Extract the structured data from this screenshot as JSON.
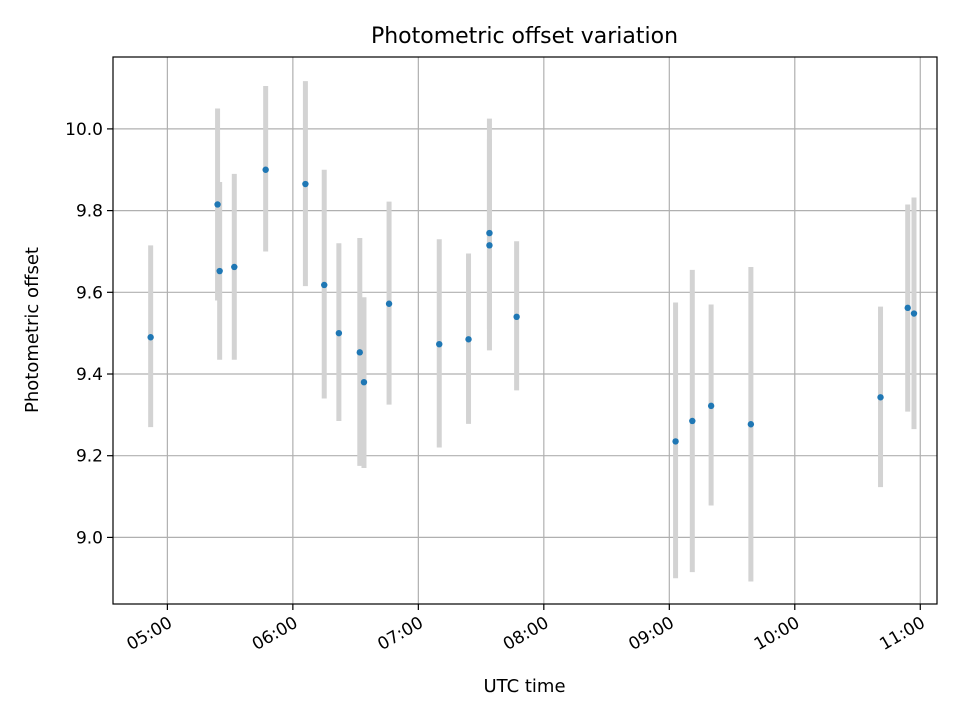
{
  "chart_data": {
    "type": "scatter",
    "title": "Photometric offset variation",
    "xlabel": "UTC time",
    "ylabel": "Photometric offset",
    "x_tick_labels": [
      "05:00",
      "06:00",
      "07:00",
      "08:00",
      "09:00",
      "10:00",
      "11:00"
    ],
    "x_tick_minutes": [
      300,
      360,
      420,
      480,
      540,
      600,
      660
    ],
    "y_tick_labels": [
      "9.0",
      "9.2",
      "9.4",
      "9.6",
      "9.8",
      "10.0"
    ],
    "y_tick_values": [
      9.0,
      9.2,
      9.4,
      9.6,
      9.8,
      10.0
    ],
    "xlim": [
      "04:34",
      "11:08"
    ],
    "ylim": [
      8.837,
      10.176
    ],
    "grid": true,
    "colors": {
      "marker": "#1f77b4",
      "errorbar": "#d3d3d3",
      "grid": "#b0b0b0"
    },
    "points": [
      {
        "time": "04:52",
        "value": 9.49,
        "err_low": 9.27,
        "err_high": 9.715
      },
      {
        "time": "05:24",
        "value": 9.815,
        "err_low": 9.58,
        "err_high": 10.05
      },
      {
        "time": "05:25",
        "value": 9.652,
        "err_low": 9.435,
        "err_high": 9.87
      },
      {
        "time": "05:32",
        "value": 9.662,
        "err_low": 9.435,
        "err_high": 9.89
      },
      {
        "time": "05:47",
        "value": 9.9,
        "err_low": 9.7,
        "err_high": 10.105
      },
      {
        "time": "06:06",
        "value": 9.865,
        "err_low": 9.615,
        "err_high": 10.117
      },
      {
        "time": "06:15",
        "value": 9.618,
        "err_low": 9.34,
        "err_high": 9.9
      },
      {
        "time": "06:22",
        "value": 9.5,
        "err_low": 9.285,
        "err_high": 9.72
      },
      {
        "time": "06:32",
        "value": 9.453,
        "err_low": 9.175,
        "err_high": 9.733
      },
      {
        "time": "06:34",
        "value": 9.38,
        "err_low": 9.17,
        "err_high": 9.588
      },
      {
        "time": "06:46",
        "value": 9.572,
        "err_low": 9.325,
        "err_high": 9.822
      },
      {
        "time": "07:10",
        "value": 9.473,
        "err_low": 9.22,
        "err_high": 9.73
      },
      {
        "time": "07:24",
        "value": 9.485,
        "err_low": 9.278,
        "err_high": 9.695
      },
      {
        "time": "07:34",
        "value": 9.745,
        "err_low": 9.51,
        "err_high": 10.025
      },
      {
        "time": "07:34",
        "value": 9.715,
        "err_low": 9.458,
        "err_high": 9.975
      },
      {
        "time": "07:47",
        "value": 9.54,
        "err_low": 9.36,
        "err_high": 9.725
      },
      {
        "time": "09:03",
        "value": 9.235,
        "err_low": 8.9,
        "err_high": 9.575
      },
      {
        "time": "09:11",
        "value": 9.285,
        "err_low": 8.915,
        "err_high": 9.655
      },
      {
        "time": "09:20",
        "value": 9.322,
        "err_low": 9.078,
        "err_high": 9.57
      },
      {
        "time": "09:39",
        "value": 9.277,
        "err_low": 8.892,
        "err_high": 9.662
      },
      {
        "time": "10:41",
        "value": 9.343,
        "err_low": 9.123,
        "err_high": 9.565
      },
      {
        "time": "10:54",
        "value": 9.562,
        "err_low": 9.308,
        "err_high": 9.815
      },
      {
        "time": "10:57",
        "value": 9.548,
        "err_low": 9.265,
        "err_high": 9.832
      }
    ]
  }
}
